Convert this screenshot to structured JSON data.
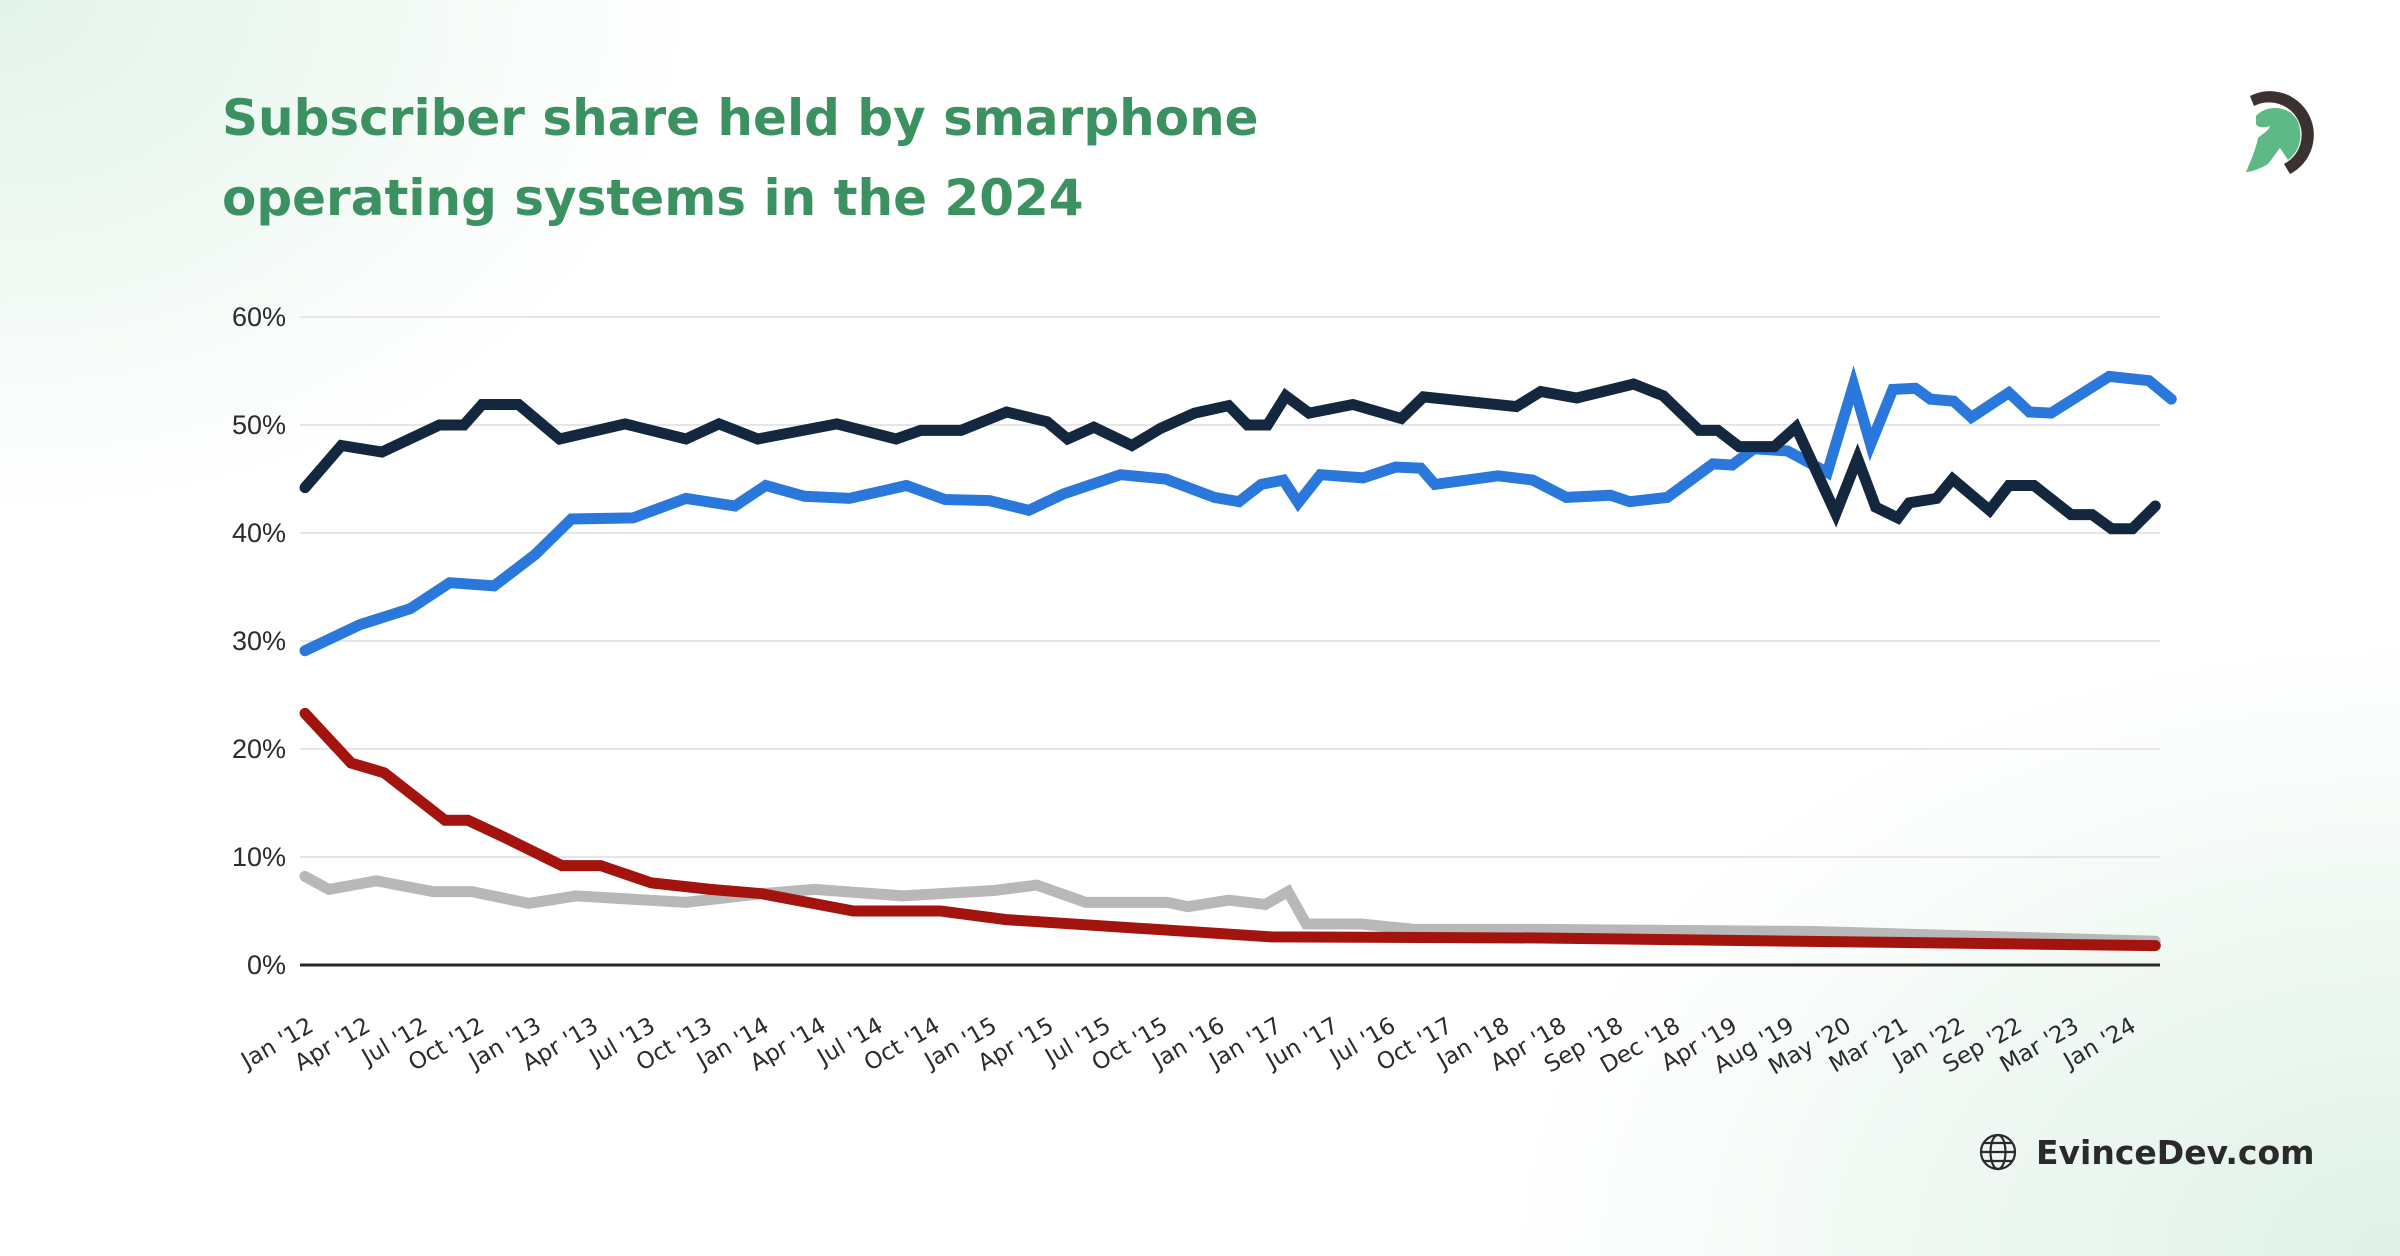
{
  "header": {
    "title": "Subscriber share held by smarphone operating systems in the 2024"
  },
  "logo": {
    "icon": "spartan-helmet-logo",
    "colors": {
      "helmet": "#5db985",
      "crest": "#3b3130"
    }
  },
  "footer": {
    "icon": "globe-icon",
    "site": "EvinceDev.com"
  },
  "chart_data": {
    "type": "line",
    "title": "Subscriber share held by smarphone operating systems in the 2024",
    "xlabel": "",
    "ylabel": "",
    "ylim": [
      0,
      60
    ],
    "y_ticks": [
      "0%",
      "10%",
      "20%",
      "30%",
      "40%",
      "50%",
      "60%"
    ],
    "y_tick_values": [
      0,
      10,
      20,
      30,
      40,
      50,
      60
    ],
    "grid": "horizontal",
    "legend": "none",
    "categories": [
      "Jan '12",
      "Apr '12",
      "Jul '12",
      "Oct '12",
      "Jan '13",
      "Apr '13",
      "Jul '13",
      "Oct '13",
      "Jan '14",
      "Apr '14",
      "Jul '14",
      "Oct '14",
      "Jan '15",
      "Apr '15",
      "Jul '15",
      "Oct '15",
      "Jan '16",
      "Jan '17",
      "Jun '17",
      "Jul '16",
      "Oct '17",
      "Jan '18",
      "Apr '18",
      "Sep '18",
      "Dec '18",
      "Apr '19",
      "Aug '19",
      "May '20",
      "Mar '21",
      "Jan '22",
      "Sep '22",
      "Mar '23",
      "Jan '24"
    ],
    "x_unit": "category index (0 = Jan '12)",
    "series": [
      {
        "color": "#b8b8b8",
        "points": [
          [
            0,
            8.2
          ],
          [
            0.42,
            7.0
          ],
          [
            1.25,
            7.8
          ],
          [
            2.25,
            6.8
          ],
          [
            2.93,
            6.8
          ],
          [
            3.93,
            5.7
          ],
          [
            4.76,
            6.4
          ],
          [
            6.69,
            5.8
          ],
          [
            8.02,
            6.6
          ],
          [
            8.95,
            7.0
          ],
          [
            10.5,
            6.4
          ],
          [
            12.1,
            6.9
          ],
          [
            12.85,
            7.4
          ],
          [
            13.71,
            5.8
          ],
          [
            15.14,
            5.8
          ],
          [
            15.5,
            5.4
          ],
          [
            16.22,
            6.0
          ],
          [
            16.86,
            5.6
          ],
          [
            17.26,
            6.8
          ],
          [
            17.58,
            3.8
          ],
          [
            18.55,
            3.8
          ],
          [
            19.48,
            3.3
          ],
          [
            21.69,
            3.3
          ],
          [
            26.5,
            3.1
          ],
          [
            32.49,
            2.2
          ]
        ]
      },
      {
        "color": "#a3140e",
        "points": [
          [
            0,
            23.3
          ],
          [
            0.81,
            18.7
          ],
          [
            1.39,
            17.8
          ],
          [
            2.46,
            13.4
          ],
          [
            2.86,
            13.4
          ],
          [
            3.43,
            12.0
          ],
          [
            4.51,
            9.2
          ],
          [
            5.19,
            9.2
          ],
          [
            6.08,
            7.6
          ],
          [
            7.12,
            7.0
          ],
          [
            8.02,
            6.6
          ],
          [
            9.63,
            5.0
          ],
          [
            10.38,
            5.0
          ],
          [
            11.16,
            5.0
          ],
          [
            12.31,
            4.2
          ],
          [
            16.97,
            2.6
          ],
          [
            21.69,
            2.5
          ],
          [
            32.49,
            1.8
          ]
        ]
      },
      {
        "color": "#2b78dc",
        "points": [
          [
            0,
            29.1
          ],
          [
            0.96,
            31.5
          ],
          [
            1.85,
            33.0
          ],
          [
            2.54,
            35.4
          ],
          [
            3.32,
            35.1
          ],
          [
            4.04,
            38.0
          ],
          [
            4.68,
            41.3
          ],
          [
            5.76,
            41.4
          ],
          [
            6.69,
            43.2
          ],
          [
            7.55,
            42.5
          ],
          [
            8.09,
            44.4
          ],
          [
            8.77,
            43.4
          ],
          [
            9.56,
            43.2
          ],
          [
            10.56,
            44.4
          ],
          [
            11.24,
            43.1
          ],
          [
            12.02,
            43.0
          ],
          [
            12.71,
            42.1
          ],
          [
            13.31,
            43.6
          ],
          [
            14.32,
            45.4
          ],
          [
            15.11,
            45.0
          ],
          [
            15.97,
            43.3
          ],
          [
            16.4,
            42.9
          ],
          [
            16.79,
            44.5
          ],
          [
            17.18,
            44.9
          ],
          [
            17.44,
            42.8
          ],
          [
            17.83,
            45.4
          ],
          [
            18.58,
            45.1
          ],
          [
            19.15,
            46.1
          ],
          [
            19.59,
            46.0
          ],
          [
            19.84,
            44.5
          ],
          [
            20.95,
            45.3
          ],
          [
            21.56,
            44.9
          ],
          [
            22.15,
            43.3
          ],
          [
            22.92,
            43.5
          ],
          [
            23.26,
            42.9
          ],
          [
            23.92,
            43.3
          ],
          [
            24.72,
            46.4
          ],
          [
            25.06,
            46.3
          ],
          [
            25.44,
            47.8
          ],
          [
            26.03,
            47.6
          ],
          [
            26.73,
            45.6
          ],
          [
            27.19,
            53.7
          ],
          [
            27.49,
            48.2
          ],
          [
            27.88,
            53.3
          ],
          [
            28.28,
            53.4
          ],
          [
            28.54,
            52.4
          ],
          [
            28.95,
            52.2
          ],
          [
            29.26,
            50.7
          ],
          [
            29.92,
            53.0
          ],
          [
            30.28,
            51.2
          ],
          [
            30.66,
            51.1
          ],
          [
            31.68,
            54.5
          ],
          [
            32.38,
            54.1
          ],
          [
            32.77,
            52.4
          ]
        ]
      },
      {
        "color": "#13283f",
        "points": [
          [
            0,
            44.2
          ],
          [
            0.64,
            48.1
          ],
          [
            1.35,
            47.5
          ],
          [
            2.36,
            50.0
          ],
          [
            2.79,
            50.0
          ],
          [
            3.11,
            51.9
          ],
          [
            3.75,
            51.9
          ],
          [
            4.47,
            48.7
          ],
          [
            5.62,
            50.1
          ],
          [
            6.69,
            48.7
          ],
          [
            7.27,
            50.1
          ],
          [
            7.95,
            48.7
          ],
          [
            9.34,
            50.1
          ],
          [
            10.38,
            48.7
          ],
          [
            10.81,
            49.5
          ],
          [
            11.52,
            49.5
          ],
          [
            12.32,
            51.2
          ],
          [
            13.03,
            50.3
          ],
          [
            13.39,
            48.7
          ],
          [
            13.85,
            49.8
          ],
          [
            14.52,
            48.1
          ],
          [
            15.03,
            49.7
          ],
          [
            15.62,
            51.1
          ],
          [
            16.22,
            51.8
          ],
          [
            16.55,
            50.0
          ],
          [
            16.9,
            50.0
          ],
          [
            17.22,
            52.7
          ],
          [
            17.63,
            51.1
          ],
          [
            18.4,
            51.9
          ],
          [
            19.25,
            50.6
          ],
          [
            19.64,
            52.6
          ],
          [
            21.27,
            51.7
          ],
          [
            21.7,
            53.1
          ],
          [
            22.33,
            52.5
          ],
          [
            23.33,
            53.8
          ],
          [
            23.85,
            52.7
          ],
          [
            24.48,
            49.5
          ],
          [
            24.81,
            49.5
          ],
          [
            25.18,
            48.0
          ],
          [
            25.8,
            48.0
          ],
          [
            26.18,
            49.8
          ],
          [
            26.88,
            41.8
          ],
          [
            27.26,
            46.9
          ],
          [
            27.58,
            42.4
          ],
          [
            27.97,
            41.4
          ],
          [
            28.17,
            42.8
          ],
          [
            28.65,
            43.2
          ],
          [
            28.93,
            45.0
          ],
          [
            29.58,
            42.1
          ],
          [
            29.92,
            44.4
          ],
          [
            30.36,
            44.4
          ],
          [
            31.01,
            41.7
          ],
          [
            31.38,
            41.7
          ],
          [
            31.72,
            40.4
          ],
          [
            32.09,
            40.4
          ],
          [
            32.49,
            42.5
          ]
        ]
      }
    ]
  }
}
